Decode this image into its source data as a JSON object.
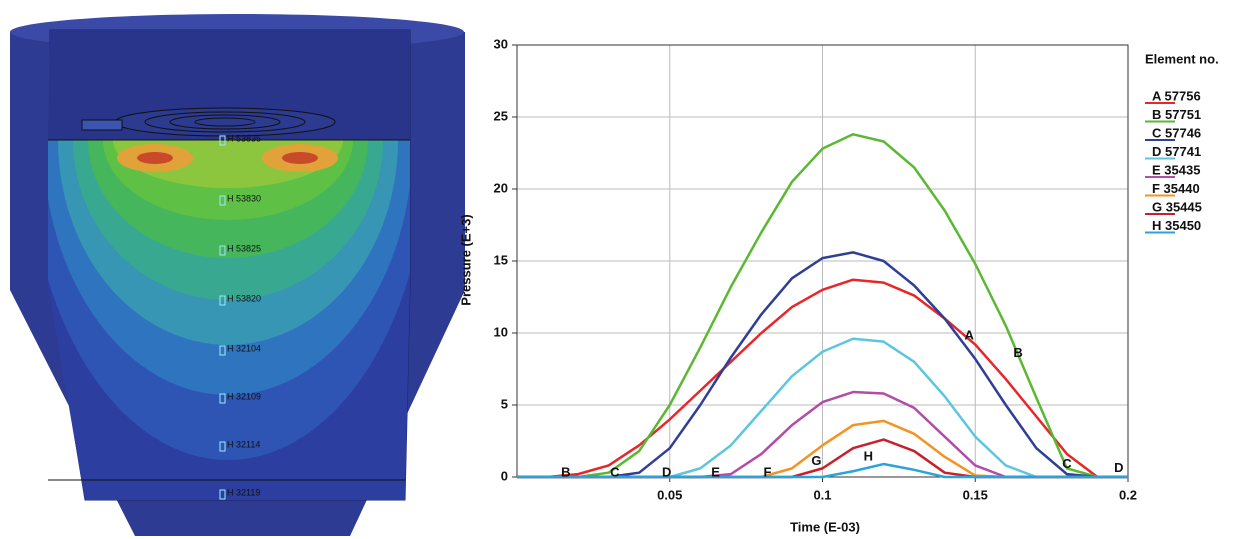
{
  "chart_data": {
    "type": "line",
    "x_label": "Time (E-03)",
    "y_label": "Pressure (E+3)",
    "legend_title": "Element no.",
    "x": [
      0,
      0.01,
      0.02,
      0.03,
      0.04,
      0.05,
      0.06,
      0.07,
      0.08,
      0.09,
      0.1,
      0.11,
      0.12,
      0.13,
      0.14,
      0.15,
      0.16,
      0.17,
      0.18,
      0.19,
      0.2
    ],
    "series": [
      {
        "name": "A 57756",
        "color": "#e8262a",
        "values": [
          0,
          0,
          0.2,
          0.8,
          2.2,
          4.0,
          6.0,
          8.0,
          10.0,
          11.8,
          13.0,
          13.7,
          13.5,
          12.6,
          11.0,
          9.2,
          6.8,
          4.2,
          1.6,
          0,
          0
        ]
      },
      {
        "name": "B 57751",
        "color": "#5bb833",
        "values": [
          0,
          0,
          0,
          0.3,
          1.8,
          5.0,
          9.0,
          13.2,
          17.0,
          20.5,
          22.8,
          23.8,
          23.3,
          21.5,
          18.5,
          14.8,
          10.5,
          5.5,
          0.6,
          0,
          0
        ]
      },
      {
        "name": "C 57746",
        "color": "#2f3e96",
        "values": [
          0,
          0,
          0,
          0,
          0.3,
          2.0,
          5.0,
          8.3,
          11.3,
          13.8,
          15.2,
          15.6,
          15.0,
          13.3,
          11.0,
          8.2,
          5.0,
          2.0,
          0.2,
          0,
          0
        ]
      },
      {
        "name": "D 57741",
        "color": "#5cc6df",
        "values": [
          0,
          0,
          0,
          0,
          0,
          0,
          0.6,
          2.2,
          4.6,
          7.0,
          8.7,
          9.6,
          9.4,
          8.0,
          5.6,
          2.8,
          0.8,
          0,
          0,
          0,
          0
        ]
      },
      {
        "name": "E 35435",
        "color": "#b24ca8",
        "values": [
          0,
          0,
          0,
          0,
          0,
          0,
          0,
          0.2,
          1.6,
          3.6,
          5.2,
          5.9,
          5.8,
          4.8,
          2.8,
          0.8,
          0,
          0,
          0,
          0,
          0
        ]
      },
      {
        "name": "F 35440",
        "color": "#f39321",
        "values": [
          0,
          0,
          0,
          0,
          0,
          0,
          0,
          0,
          0,
          0.6,
          2.2,
          3.6,
          3.9,
          3.0,
          1.4,
          0.1,
          0,
          0,
          0,
          0,
          0
        ]
      },
      {
        "name": "G 35445",
        "color": "#c8202b",
        "values": [
          0,
          0,
          0,
          0,
          0,
          0,
          0,
          0,
          0,
          0,
          0.6,
          2.0,
          2.6,
          1.8,
          0.3,
          0,
          0,
          0,
          0,
          0,
          0
        ]
      },
      {
        "name": "H 35450",
        "color": "#2aa3dc",
        "values": [
          0,
          0,
          0,
          0,
          0,
          0,
          0,
          0,
          0,
          0,
          0,
          0.4,
          0.9,
          0.5,
          0,
          0,
          0,
          0,
          0,
          0,
          0
        ]
      }
    ],
    "annotations": [
      "B",
      "C",
      "D",
      "E",
      "F",
      "G",
      "H",
      "A",
      "B",
      "C",
      "D"
    ],
    "xlim": [
      0,
      0.2
    ],
    "xticks": [
      0.05,
      0.1,
      0.15,
      0.2
    ],
    "ylim": [
      0,
      30
    ],
    "yticks": [
      0,
      5,
      10,
      15,
      20,
      25,
      30
    ],
    "grid": true
  },
  "model_labels": [
    "H 53835",
    "H 53830",
    "H 53825",
    "H 53820",
    "H 32104",
    "H 32109",
    "H 32114",
    "H 32119"
  ]
}
